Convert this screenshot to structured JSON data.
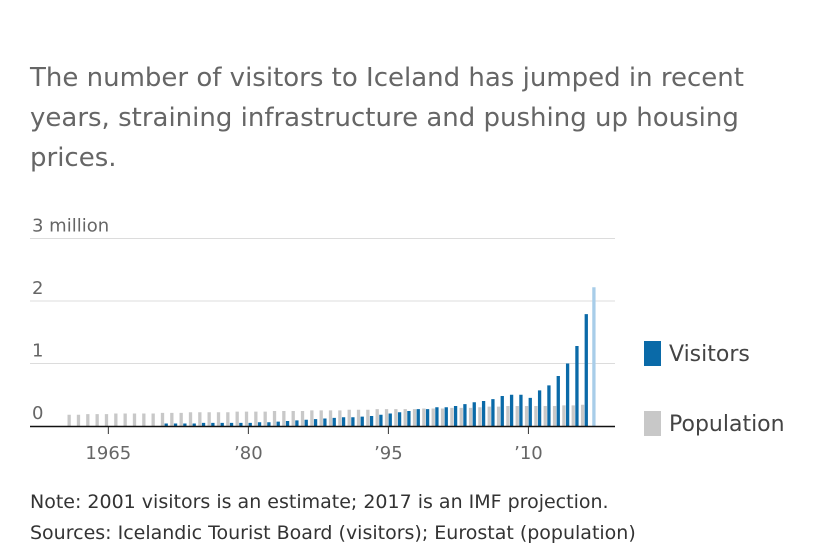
{
  "headline": "The number of visitors to Iceland has jumped in recent years, straining infrastructure and pushing up housing prices.",
  "note": "Note: 2001 visitors is an estimate; 2017 is an IMF projection.",
  "sources": "Sources: Icelandic Tourist Board (visitors); Eurostat (population)",
  "chart_data": {
    "type": "bar",
    "title": "",
    "xlabel": "",
    "ylabel": "",
    "ylim": [
      0,
      3
    ],
    "y_ticks": [
      {
        "value": 0,
        "label": "0"
      },
      {
        "value": 1,
        "label": "1"
      },
      {
        "value": 2,
        "label": "2"
      },
      {
        "value": 3,
        "label": "3 million"
      }
    ],
    "x_ticks": [
      {
        "year": 1965,
        "label": "1965"
      },
      {
        "year": 1980,
        "label": "’80"
      },
      {
        "year": 1995,
        "label": "’95"
      },
      {
        "year": 2010,
        "label": "’10"
      }
    ],
    "years": [
      1961,
      1962,
      1963,
      1964,
      1965,
      1966,
      1967,
      1968,
      1969,
      1970,
      1971,
      1972,
      1973,
      1974,
      1975,
      1976,
      1977,
      1978,
      1979,
      1980,
      1981,
      1982,
      1983,
      1984,
      1985,
      1986,
      1987,
      1988,
      1989,
      1990,
      1991,
      1992,
      1993,
      1994,
      1995,
      1996,
      1997,
      1998,
      1999,
      2000,
      2001,
      2002,
      2003,
      2004,
      2005,
      2006,
      2007,
      2008,
      2009,
      2010,
      2011,
      2012,
      2013,
      2014,
      2015,
      2016,
      2017
    ],
    "series": [
      {
        "name": "Visitors",
        "color": "#0a6aa8",
        "values": [
          null,
          null,
          null,
          null,
          null,
          null,
          null,
          null,
          null,
          null,
          0.04,
          0.04,
          0.04,
          0.04,
          0.05,
          0.05,
          0.05,
          0.05,
          0.05,
          0.05,
          0.06,
          0.06,
          0.07,
          0.08,
          0.09,
          0.1,
          0.11,
          0.12,
          0.13,
          0.14,
          0.14,
          0.15,
          0.16,
          0.18,
          0.2,
          0.22,
          0.24,
          0.27,
          0.27,
          0.3,
          0.3,
          0.32,
          0.35,
          0.38,
          0.4,
          0.43,
          0.48,
          0.5,
          0.5,
          0.45,
          0.57,
          0.65,
          0.8,
          1.0,
          1.28,
          1.79,
          null
        ]
      },
      {
        "name": "Projection",
        "color": "#a8cde9",
        "values": [
          null,
          null,
          null,
          null,
          null,
          null,
          null,
          null,
          null,
          null,
          null,
          null,
          null,
          null,
          null,
          null,
          null,
          null,
          null,
          null,
          null,
          null,
          null,
          null,
          null,
          null,
          null,
          null,
          null,
          null,
          null,
          null,
          null,
          null,
          null,
          null,
          null,
          null,
          null,
          null,
          null,
          null,
          null,
          null,
          null,
          null,
          null,
          null,
          null,
          null,
          null,
          null,
          null,
          null,
          null,
          null,
          2.22
        ]
      },
      {
        "name": "Population",
        "color": "#c8c8c8",
        "values": [
          0.18,
          0.18,
          0.19,
          0.19,
          0.19,
          0.2,
          0.2,
          0.2,
          0.2,
          0.2,
          0.21,
          0.21,
          0.21,
          0.22,
          0.22,
          0.22,
          0.22,
          0.22,
          0.23,
          0.23,
          0.23,
          0.23,
          0.24,
          0.24,
          0.24,
          0.24,
          0.25,
          0.25,
          0.25,
          0.25,
          0.26,
          0.26,
          0.26,
          0.27,
          0.27,
          0.27,
          0.27,
          0.27,
          0.28,
          0.28,
          0.28,
          0.29,
          0.29,
          0.29,
          0.3,
          0.31,
          0.31,
          0.32,
          0.32,
          0.32,
          0.32,
          0.32,
          0.32,
          0.33,
          0.33,
          0.34,
          null
        ]
      }
    ],
    "legend": [
      {
        "label": "Visitors",
        "color": "#0a6aa8"
      },
      {
        "label": "Population",
        "color": "#c8c8c8"
      }
    ],
    "legend_position": "right",
    "grid": true
  }
}
